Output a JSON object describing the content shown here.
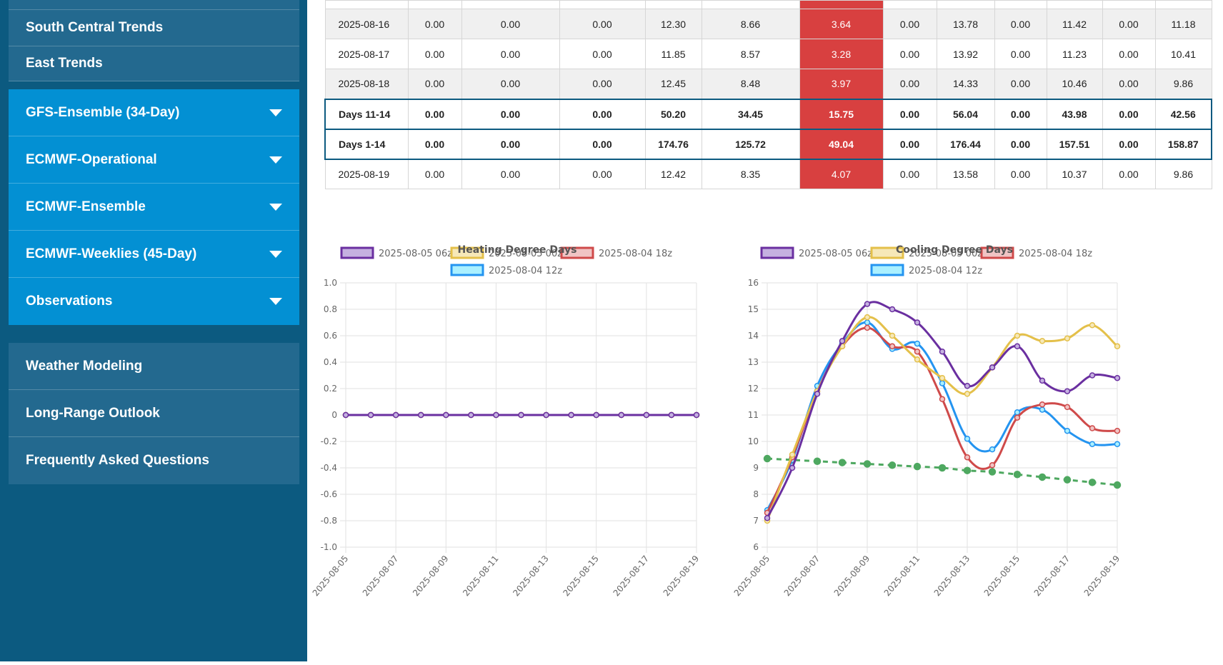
{
  "sidebar": {
    "top_items": [
      {
        "label": "South Central Trends"
      },
      {
        "label": "East Trends"
      }
    ],
    "dropdowns": [
      {
        "label": "GFS-Ensemble (34-Day)"
      },
      {
        "label": "ECMWF-Operational"
      },
      {
        "label": "ECMWF-Ensemble"
      },
      {
        "label": "ECMWF-Weeklies (45-Day)"
      },
      {
        "label": "Observations"
      }
    ],
    "bottom_items": [
      {
        "label": "Weather Modeling"
      },
      {
        "label": "Long-Range Outlook"
      },
      {
        "label": "Frequently Asked Questions"
      }
    ]
  },
  "table": {
    "rows": [
      {
        "type": "normal",
        "cells": [
          "2025-08-16",
          "0.00",
          "0.00",
          "0.00",
          "12.30",
          "8.66",
          "3.64",
          "0.00",
          "13.78",
          "0.00",
          "11.42",
          "0.00",
          "11.18"
        ]
      },
      {
        "type": "normal",
        "cells": [
          "2025-08-17",
          "0.00",
          "0.00",
          "0.00",
          "11.85",
          "8.57",
          "3.28",
          "0.00",
          "13.92",
          "0.00",
          "11.23",
          "0.00",
          "10.41"
        ]
      },
      {
        "type": "normal",
        "cells": [
          "2025-08-18",
          "0.00",
          "0.00",
          "0.00",
          "12.45",
          "8.48",
          "3.97",
          "0.00",
          "14.33",
          "0.00",
          "10.46",
          "0.00",
          "9.86"
        ]
      },
      {
        "type": "total",
        "cells": [
          "Days 11-14",
          "0.00",
          "0.00",
          "0.00",
          "50.20",
          "34.45",
          "15.75",
          "0.00",
          "56.04",
          "0.00",
          "43.98",
          "0.00",
          "42.56"
        ]
      },
      {
        "type": "total",
        "cells": [
          "Days 1-14",
          "0.00",
          "0.00",
          "0.00",
          "174.76",
          "125.72",
          "49.04",
          "0.00",
          "176.44",
          "0.00",
          "157.51",
          "0.00",
          "158.87"
        ]
      },
      {
        "type": "normal",
        "cells": [
          "2025-08-19",
          "0.00",
          "0.00",
          "0.00",
          "12.42",
          "8.35",
          "4.07",
          "0.00",
          "13.58",
          "0.00",
          "10.37",
          "0.00",
          "9.86"
        ]
      }
    ]
  },
  "colors": {
    "sidebar_bg": "#0c5a80",
    "nav_plain": "#23698f",
    "nav_dropdown": "#0390d3",
    "highlight": "#d84040",
    "series": [
      "#6a2fa0",
      "#e4c04a",
      "#cf4a4a",
      "#2494f0"
    ],
    "series_fill": [
      "#c5b1e0",
      "#f6e8b8",
      "#f0c4c4",
      "#aaf0ff"
    ],
    "normal": "#4ea860"
  },
  "chart_data": [
    {
      "type": "line",
      "title": "Heating Degree Days",
      "x": [
        "2025-08-05",
        "2025-08-06",
        "2025-08-07",
        "2025-08-08",
        "2025-08-09",
        "2025-08-10",
        "2025-08-11",
        "2025-08-12",
        "2025-08-13",
        "2025-08-14",
        "2025-08-15",
        "2025-08-16",
        "2025-08-17",
        "2025-08-18",
        "2025-08-19"
      ],
      "x_tick_labels": [
        "2025-08-05",
        "2025-08-07",
        "2025-08-09",
        "2025-08-11",
        "2025-08-13",
        "2025-08-15",
        "2025-08-17",
        "2025-08-19"
      ],
      "ylim": [
        -1.0,
        1.0
      ],
      "y_ticks": [
        "1.0",
        "0.8",
        "0.6",
        "0.4",
        "0.2",
        "0",
        "-0.2",
        "-0.4",
        "-0.6",
        "-0.8",
        "-1.0"
      ],
      "legend_position": "top",
      "grid": true,
      "series": [
        {
          "name": "2025-08-05 06z",
          "values": [
            0,
            0,
            0,
            0,
            0,
            0,
            0,
            0,
            0,
            0,
            0,
            0,
            0,
            0,
            0
          ]
        },
        {
          "name": "2025-08-05 00z",
          "values": [
            0,
            0,
            0,
            0,
            0,
            0,
            0,
            0,
            0,
            0,
            0,
            0,
            0,
            0,
            0
          ]
        },
        {
          "name": "2025-08-04 18z",
          "values": [
            0,
            0,
            0,
            0,
            0,
            0,
            0,
            0,
            0,
            0,
            0,
            0,
            0,
            0,
            0
          ]
        },
        {
          "name": "2025-08-04 12z",
          "values": [
            0,
            0,
            0,
            0,
            0,
            0,
            0,
            0,
            0,
            0,
            0,
            0,
            0,
            0,
            0
          ]
        }
      ]
    },
    {
      "type": "line",
      "title": "Cooling Degree Days",
      "x": [
        "2025-08-05",
        "2025-08-06",
        "2025-08-07",
        "2025-08-08",
        "2025-08-09",
        "2025-08-10",
        "2025-08-11",
        "2025-08-12",
        "2025-08-13",
        "2025-08-14",
        "2025-08-15",
        "2025-08-16",
        "2025-08-17",
        "2025-08-18",
        "2025-08-19"
      ],
      "x_tick_labels": [
        "2025-08-05",
        "2025-08-07",
        "2025-08-09",
        "2025-08-11",
        "2025-08-13",
        "2025-08-15",
        "2025-08-17",
        "2025-08-19"
      ],
      "ylim": [
        6,
        16
      ],
      "y_ticks": [
        "16",
        "15",
        "14",
        "13",
        "12",
        "11",
        "10",
        "9",
        "8",
        "7",
        "6"
      ],
      "legend_position": "top",
      "grid": true,
      "series": [
        {
          "name": "2025-08-05 06z",
          "values": [
            7.1,
            9.0,
            11.8,
            13.8,
            15.2,
            15.0,
            14.5,
            13.4,
            12.1,
            12.8,
            13.6,
            12.3,
            11.9,
            12.5,
            12.4
          ]
        },
        {
          "name": "2025-08-05 00z",
          "values": [
            7.0,
            9.5,
            11.9,
            13.6,
            14.7,
            14.0,
            13.1,
            12.4,
            11.8,
            12.8,
            14.0,
            13.8,
            13.9,
            14.4,
            13.6
          ]
        },
        {
          "name": "2025-08-04 18z",
          "values": [
            7.3,
            9.4,
            11.9,
            13.6,
            14.3,
            13.6,
            13.4,
            11.6,
            9.4,
            9.1,
            10.9,
            11.4,
            11.3,
            10.5,
            10.4
          ]
        },
        {
          "name": "2025-08-04 12z",
          "values": [
            7.4,
            9.3,
            12.1,
            13.7,
            14.5,
            13.5,
            13.7,
            12.2,
            10.1,
            9.7,
            11.1,
            11.2,
            10.4,
            9.9,
            9.9
          ]
        },
        {
          "values": [
            9.35,
            9.3,
            9.25,
            9.2,
            9.15,
            9.1,
            9.05,
            9.0,
            8.9,
            8.85,
            8.75,
            8.65,
            8.55,
            8.45,
            8.35
          ]
        }
      ]
    }
  ]
}
